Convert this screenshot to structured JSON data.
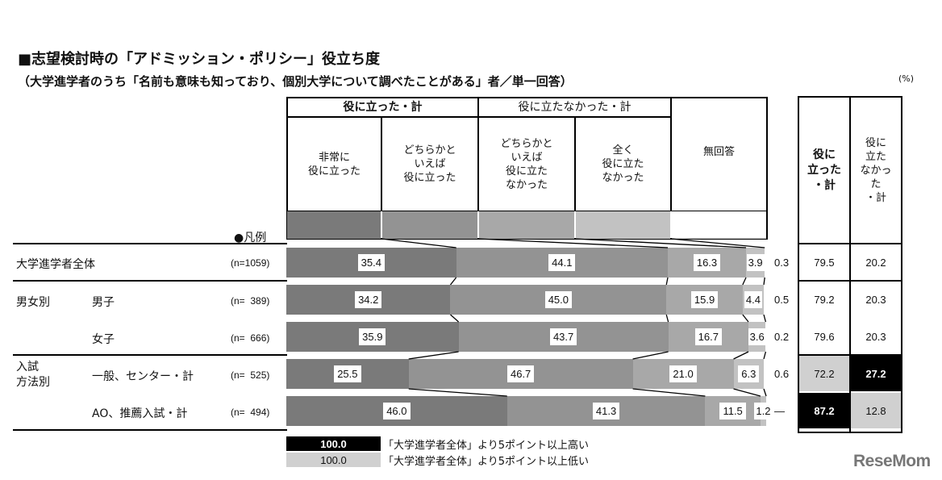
{
  "title": "■志望検討時の「アドミッション・ポリシー」役立ち度",
  "subtitle": "（大学進学者のうち「名前も意味も知っており、個別大学について調べたことがある」者／単一回答）",
  "unit": "(%)",
  "header": {
    "group_useful": "役に立った・計",
    "group_not_useful": "役に立たなかった・計",
    "categories": [
      "非常に\n役に立った",
      "どちらかと\nいえば\n役に立った",
      "どちらかと\nいえば\n役に立た\nなかった",
      "全く\n役に立た\nなかった",
      "無回答"
    ],
    "total_useful": "役に\n立った\n・計",
    "total_not_useful": "役に\n立た\nなかっ\nた\n・計",
    "legend_label": "●凡例"
  },
  "colors": {
    "very_useful": "#7a7a7a",
    "somewhat_useful": "#939393",
    "somewhat_not": "#a8a8a8",
    "not_at_all": "#c2c2c2",
    "no_answer": "#ffffff",
    "high_highlight": "#000000",
    "low_highlight": "#d0d0d0"
  },
  "rows": [
    {
      "group": "大学進学者全体",
      "label": "",
      "n": "(n=1059)",
      "values": [
        "35.4",
        "44.1",
        "16.3",
        "3.9"
      ],
      "no_answer": "0.3",
      "total_useful": "79.5",
      "total_not": "20.2"
    },
    {
      "group": "男女別",
      "label": "男子",
      "n": "(n=  389)",
      "values": [
        "34.2",
        "45.0",
        "15.9",
        "4.4"
      ],
      "no_answer": "0.5",
      "total_useful": "79.2",
      "total_not": "20.3"
    },
    {
      "group": "",
      "label": "女子",
      "n": "(n=  666)",
      "values": [
        "35.9",
        "43.7",
        "16.7",
        "3.6"
      ],
      "no_answer": "0.2",
      "total_useful": "79.6",
      "total_not": "20.3"
    },
    {
      "group": "入試\n方法別",
      "label": "一般、センター・計",
      "n": "(n=  525)",
      "values": [
        "25.5",
        "46.7",
        "21.0",
        "6.3"
      ],
      "no_answer": "0.6",
      "total_useful": "72.2",
      "total_not": "27.2"
    },
    {
      "group": "",
      "label": "AO、推薦入試・計",
      "n": "(n=  494)",
      "values": [
        "46.0",
        "41.3",
        "11.5",
        "1.2"
      ],
      "no_answer": "—",
      "total_useful": "87.2",
      "total_not": "12.8"
    }
  ],
  "legend": {
    "high_value": "100.0",
    "high_text": "「大学進学者全体」より5ポイント以上高い",
    "low_value": "100.0",
    "low_text": "「大学進学者全体」より5ポイント以上低い"
  },
  "watermark": "ReseMom",
  "chart_data": {
    "type": "bar",
    "orientation": "horizontal-stacked-100",
    "title": "■志望検討時の「アドミッション・ポリシー」役立ち度",
    "subtitle": "（大学進学者のうち「名前も意味も知っており、個別大学について調べたことがある」者／単一回答）",
    "unit": "%",
    "categories": [
      "大学進学者全体 (n=1059)",
      "男子 (n=389)",
      "女子 (n=666)",
      "一般、センター・計 (n=525)",
      "AO、推薦入試・計 (n=494)"
    ],
    "series": [
      {
        "name": "非常に役に立った",
        "values": [
          35.4,
          34.2,
          35.9,
          25.5,
          46.0
        ]
      },
      {
        "name": "どちらかといえば役に立った",
        "values": [
          44.1,
          45.0,
          43.7,
          46.7,
          41.3
        ]
      },
      {
        "name": "どちらかといえば役に立たなかった",
        "values": [
          16.3,
          15.9,
          16.7,
          21.0,
          11.5
        ]
      },
      {
        "name": "全く役に立たなかった",
        "values": [
          3.9,
          4.4,
          3.6,
          6.3,
          1.2
        ]
      },
      {
        "name": "無回答",
        "values": [
          0.3,
          0.5,
          0.2,
          0.6,
          null
        ]
      }
    ],
    "totals": {
      "役に立った・計": [
        79.5,
        79.2,
        79.6,
        72.2,
        87.2
      ],
      "役に立たなかった・計": [
        20.2,
        20.3,
        20.3,
        27.2,
        12.8
      ]
    },
    "highlight_legend": [
      "黒: 「大学進学者全体」より5ポイント以上高い",
      "灰: 「大学進学者全体」より5ポイント以上低い"
    ],
    "xlim": [
      0,
      100
    ]
  }
}
